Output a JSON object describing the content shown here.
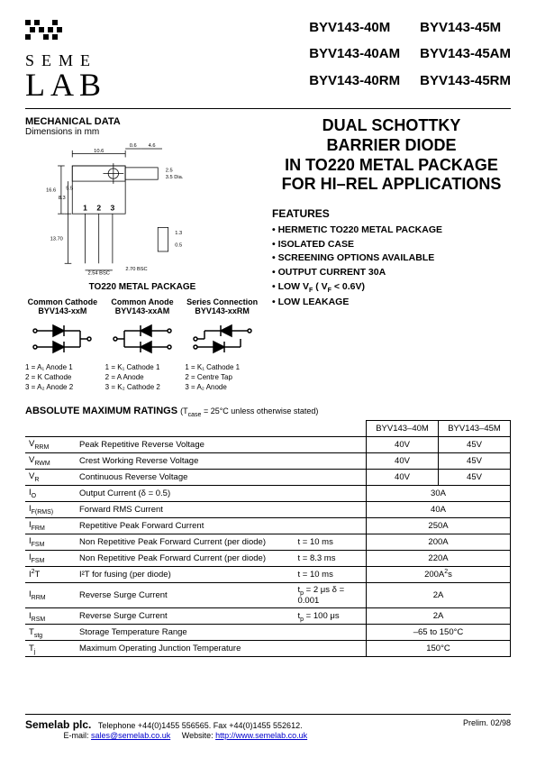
{
  "logo": {
    "line1": "SEME",
    "line2": "LAB"
  },
  "part_numbers": [
    "BYV143-40M",
    "BYV143-45M",
    "BYV143-40AM",
    "BYV143-45AM",
    "BYV143-40RM",
    "BYV143-45RM"
  ],
  "mechanical": {
    "title": "MECHANICAL DATA",
    "subtitle": "Dimensions in mm",
    "package_label": "TO220 METAL PACKAGE",
    "dims": {
      "w_top": "10.6",
      "w_hole": "0.6",
      "w_tab": "4.6",
      "h_tab": "2.5",
      "dia": "3.5 Dia.",
      "h_body1": "16.6",
      "h_body2": "8.3",
      "h_body3": "5.5",
      "pin_len": "13.70",
      "pitch": "2.54 BSC",
      "pin_w": "2.70 BSC",
      "pin_t": "1.3",
      "pin_h": "0.5",
      "pins": "1 2 3"
    }
  },
  "pinouts": [
    {
      "title": "Common Cathode",
      "part": "BYV143-xxM",
      "desc": [
        "1 = A₁ Anode 1",
        "2 = K  Cathode",
        "3 = A₂ Anode 2"
      ]
    },
    {
      "title": "Common Anode",
      "part": "BYV143-xxAM",
      "desc": [
        "1 = K₁ Cathode 1",
        "2 = A  Anode",
        "3 = K₂ Cathode 2"
      ]
    },
    {
      "title": "Series Connection",
      "part": "BYV143-xxRM",
      "desc": [
        "1 = K₁ Cathode 1",
        "2 = Centre Tap",
        "3 = A₂  Anode"
      ]
    }
  ],
  "main_title": "DUAL SCHOTTKY\nBARRIER DIODE\nIN TO220 METAL PACKAGE\nFOR HI–REL APPLICATIONS",
  "features": {
    "header": "FEATURES",
    "items": [
      "HERMETIC TO220 METAL PACKAGE",
      "ISOLATED CASE",
      "SCREENING OPTIONS AVAILABLE",
      "OUTPUT CURRENT 30A",
      "LOW V_F ( V_F < 0.6V)",
      "LOW LEAKAGE"
    ]
  },
  "ratings": {
    "header": "ABSOLUTE MAXIMUM RATINGS",
    "condition": "(T_case = 25°C unless otherwise stated)",
    "col_headers": [
      "BYV143–40M",
      "BYV143–45M"
    ],
    "rows": [
      {
        "sym": "V_RRM",
        "param": "Peak Repetitive Reverse Voltage",
        "cond": "",
        "v1": "40V",
        "v2": "45V"
      },
      {
        "sym": "V_RWM",
        "param": "Crest Working Reverse Voltage",
        "cond": "",
        "v1": "40V",
        "v2": "45V"
      },
      {
        "sym": "V_R",
        "param": "Continuous Reverse Voltage",
        "cond": "",
        "v1": "40V",
        "v2": "45V"
      },
      {
        "sym": "I_O",
        "param": "Output Current (δ = 0.5)",
        "cond": "",
        "span": "30A"
      },
      {
        "sym": "I_F(RMS)",
        "param": "Forward RMS Current",
        "cond": "",
        "span": "40A"
      },
      {
        "sym": "I_FRM",
        "param": "Repetitive Peak Forward Current",
        "cond": "",
        "span": "250A"
      },
      {
        "sym": "I_FSM",
        "param": "Non Repetitive Peak Forward Current (per diode)",
        "cond": "t = 10 ms",
        "span": "200A"
      },
      {
        "sym": "I_FSM",
        "param": "Non Repetitive Peak Forward Current (per diode)",
        "cond": "t = 8.3 ms",
        "span": "220A"
      },
      {
        "sym": "I²T",
        "param": "I²T for fusing (per diode)",
        "cond": "t = 10 ms",
        "span": "200A²s"
      },
      {
        "sym": "I_RRM",
        "param": "Reverse Surge Current",
        "cond": "t_p = 2 μs    δ = 0.001",
        "span": "2A"
      },
      {
        "sym": "I_RSM",
        "param": "Reverse Surge Current",
        "cond": "t_p = 100 μs",
        "span": "2A"
      },
      {
        "sym": "T_stg",
        "param": "Storage Temperature Range",
        "cond": "",
        "span": "–65 to 150°C"
      },
      {
        "sym": "T_j",
        "param": "Maximum Operating Junction Temperature",
        "cond": "",
        "span": "150°C"
      }
    ]
  },
  "footer": {
    "company": "Semelab plc.",
    "tel": "Telephone +44(0)1455 556565.   Fax +44(0)1455 552612.",
    "email_label": "E-mail: ",
    "email": "sales@semelab.co.uk",
    "web_label": "Website: ",
    "web": "http://www.semelab.co.uk",
    "rev": "Prelim. 02/98"
  },
  "colors": {
    "link": "#0000cc",
    "text": "#000000",
    "bg": "#ffffff"
  }
}
